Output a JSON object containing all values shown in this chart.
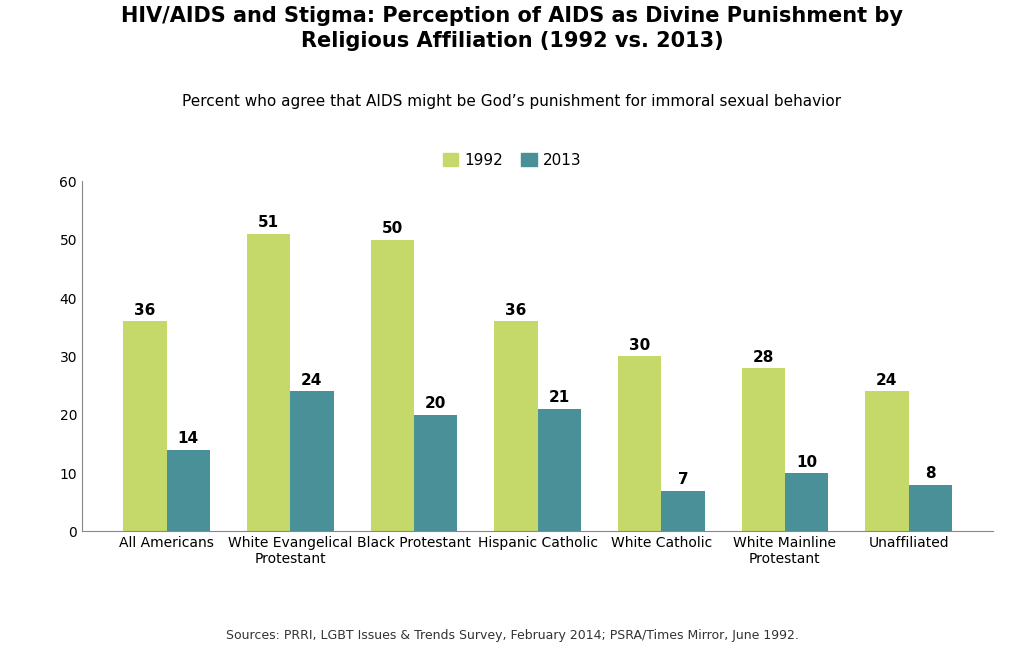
{
  "title_line1": "HIV/AIDS and Stigma: Perception of AIDS as Divine Punishment by",
  "title_line2": "Religious Affiliation (1992 vs. 2013)",
  "subtitle": "Percent who agree that AIDS might be God’s punishment for immoral sexual behavior",
  "source": "Sources: PRRI, LGBT Issues & Trends Survey, February 2014; PSRA/Times Mirror, June 1992.",
  "categories": [
    "All Americans",
    "White Evangelical\nProtestant",
    "Black Protestant",
    "Hispanic Catholic",
    "White Catholic",
    "White Mainline\nProtestant",
    "Unaffiliated"
  ],
  "values_1992": [
    36,
    51,
    50,
    36,
    30,
    28,
    24
  ],
  "values_2013": [
    14,
    24,
    20,
    21,
    7,
    10,
    8
  ],
  "color_1992": "#c5d96b",
  "color_2013": "#4a9099",
  "ylim": [
    0,
    60
  ],
  "yticks": [
    0,
    10,
    20,
    30,
    40,
    50,
    60
  ],
  "legend_labels": [
    "1992",
    "2013"
  ],
  "bar_width": 0.35,
  "title_fontsize": 15,
  "subtitle_fontsize": 11,
  "label_fontsize": 11,
  "tick_fontsize": 10,
  "source_fontsize": 9,
  "background_color": "#ffffff"
}
